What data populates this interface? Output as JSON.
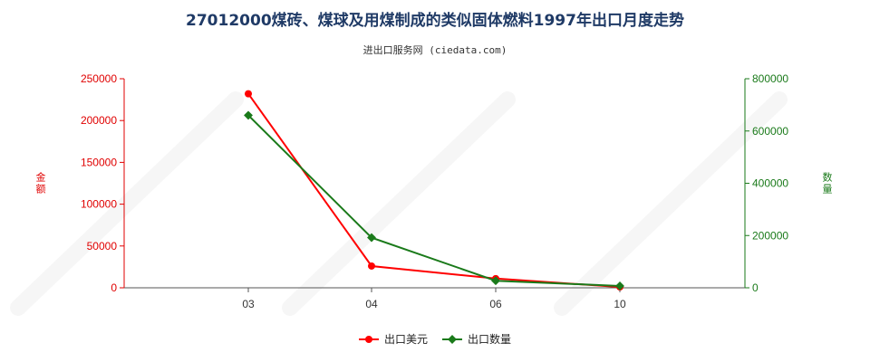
{
  "chart_data": {
    "type": "line",
    "title": "27012000煤砖、煤球及用煤制成的类似固体燃料1997年出口月度走势",
    "subtitle": "进出口服务网 (ciedata.com)",
    "categories": [
      "03",
      "04",
      "06",
      "10"
    ],
    "y_left": {
      "label": "金额",
      "ylim": [
        0,
        250000
      ],
      "ticks": [
        0,
        50000,
        100000,
        150000,
        200000,
        250000
      ],
      "tick_labels": [
        "0",
        "50000",
        "100000",
        "150000",
        "200000",
        "250000"
      ],
      "color": "#e00000"
    },
    "y_right": {
      "label": "数量",
      "ylim": [
        0,
        800000
      ],
      "ticks": [
        0,
        200000,
        400000,
        600000,
        800000
      ],
      "tick_labels": [
        "0",
        "200000",
        "400000",
        "600000",
        "800000"
      ],
      "color": "#1a7a1a"
    },
    "series": [
      {
        "name": "出口美元",
        "axis": "left",
        "color": "#ff0000",
        "values": [
          232000,
          26000,
          11000,
          1000
        ]
      },
      {
        "name": "出口数量",
        "axis": "right",
        "color": "#1a7a1a",
        "values": [
          660000,
          192000,
          27000,
          7000
        ]
      }
    ],
    "legend_position": "bottom-center",
    "grid": false
  }
}
